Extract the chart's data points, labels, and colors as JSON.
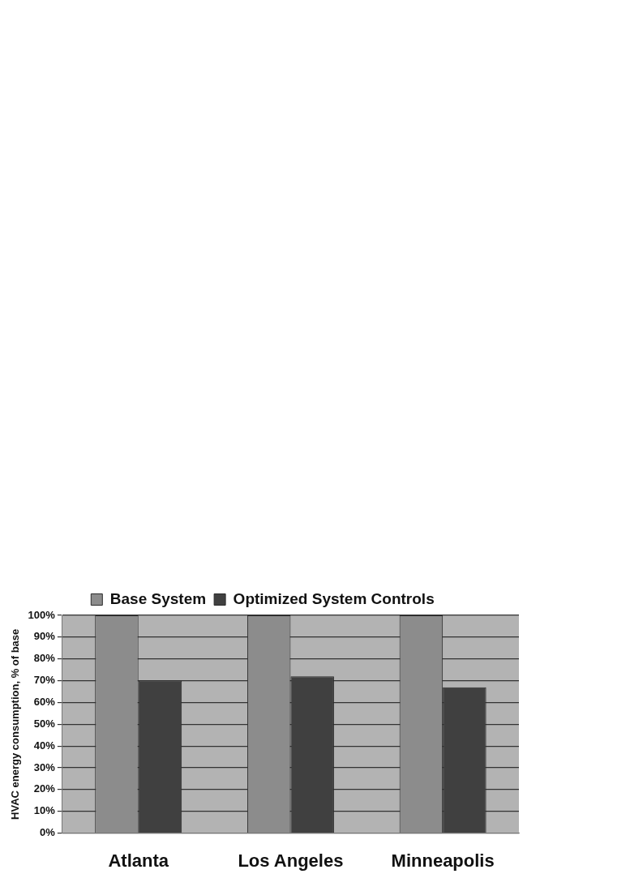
{
  "chart_data": {
    "type": "bar",
    "ylabel": "HVAC energy consumption, % of base",
    "categories": [
      "Atlanta",
      "Los Angeles",
      "Minneapolis"
    ],
    "series": [
      {
        "name": "Base System",
        "color": "#8c8c8c",
        "values": [
          100,
          100,
          100
        ]
      },
      {
        "name": "Optimized System Controls",
        "color": "#404040",
        "values": [
          70,
          72,
          67
        ]
      }
    ],
    "ylim": [
      0,
      100
    ],
    "yticks": [
      {
        "value": 0,
        "label": "0%"
      },
      {
        "value": 10,
        "label": "10%"
      },
      {
        "value": 20,
        "label": "20%"
      },
      {
        "value": 30,
        "label": "30%"
      },
      {
        "value": 40,
        "label": "40%"
      },
      {
        "value": 50,
        "label": "50%"
      },
      {
        "value": 60,
        "label": "60%"
      },
      {
        "value": 70,
        "label": "70%"
      },
      {
        "value": 80,
        "label": "80%"
      },
      {
        "value": 90,
        "label": "90%"
      },
      {
        "value": 100,
        "label": "100%"
      }
    ],
    "grid": "y",
    "legend": "top"
  }
}
